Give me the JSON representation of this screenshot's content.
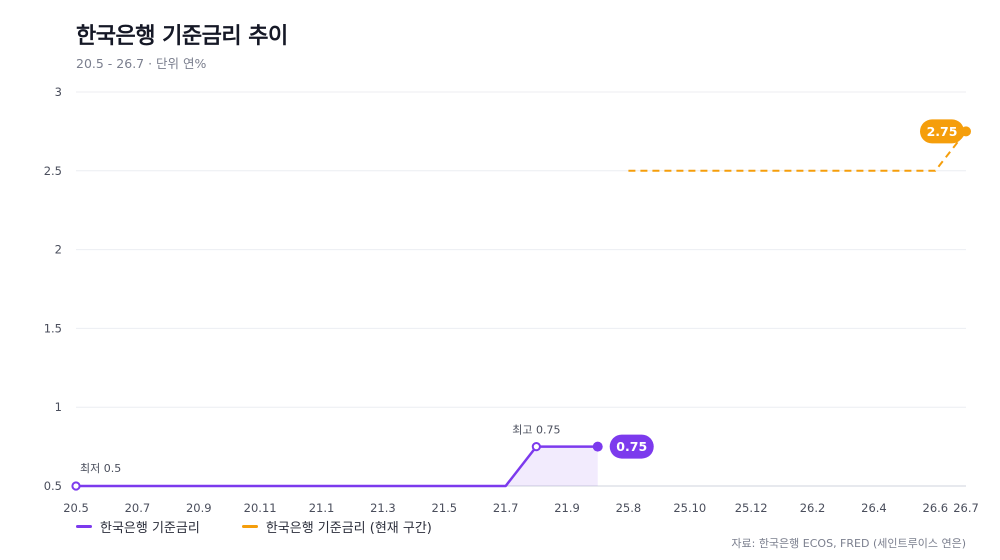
{
  "title": "한국은행 기준금리 추이",
  "subtitle": "20.5 - 26.7 · 단위 연%",
  "source": "자료: 한국은행 ECOS, FRED (세인트루이스 연은)",
  "colors": {
    "purple": "#7c3aed",
    "orange": "#f59e0b",
    "grid": "#eceef2",
    "axis": "#cfd3dc"
  },
  "chart_data": {
    "type": "line",
    "categories": [
      "20.5",
      "20.7",
      "20.9",
      "20.11",
      "21.1",
      "21.3",
      "21.5",
      "21.7",
      "21.9",
      "25.8",
      "25.10",
      "25.12",
      "26.2",
      "26.4",
      "26.6",
      "26.7"
    ],
    "ylim": [
      0.5,
      3
    ],
    "yticks": [
      0.5,
      1,
      1.5,
      2,
      2.5,
      3
    ],
    "grid": true,
    "legend_position": "bottom-left",
    "series": [
      {
        "name": "한국은행 기준금리",
        "color": "#7c3aed",
        "style": "solid",
        "points": [
          {
            "x": "20.5",
            "y": 0.5
          },
          {
            "x": "21.7",
            "y": 0.5
          },
          {
            "x": "21.8",
            "y": 0.75
          },
          {
            "x": "21.10",
            "y": 0.75
          }
        ],
        "end_label": "0.75"
      },
      {
        "name": "한국은행 기준금리 (현재 구간)",
        "color": "#f59e0b",
        "style": "dashed",
        "points": [
          {
            "x": "25.8",
            "y": 2.5
          },
          {
            "x": "26.6",
            "y": 2.5
          },
          {
            "x": "26.7",
            "y": 2.75
          }
        ],
        "end_label": "2.75"
      }
    ],
    "annotations": [
      {
        "text": "최저 0.5",
        "x": "20.5",
        "y": 0.5
      },
      {
        "text": "최고 0.75",
        "x": "21.8",
        "y": 0.75
      }
    ]
  }
}
